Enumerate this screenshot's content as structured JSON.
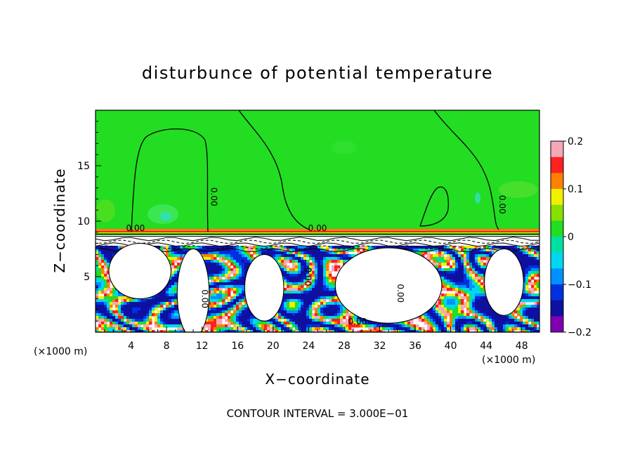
{
  "chart_data": {
    "type": "heatmap",
    "title": "disturbunce of potential temperature",
    "xlabel": "X−coordinate",
    "ylabel": "Z−coordinate",
    "xlim": [
      0,
      50
    ],
    "ylim": [
      0,
      20
    ],
    "x_ticks": [
      4,
      8,
      12,
      16,
      20,
      24,
      28,
      32,
      36,
      40,
      44,
      48
    ],
    "y_ticks": [
      5,
      10,
      15
    ],
    "x_unit_left": "(×1000 m)",
    "x_unit_right": "(×1000 m)",
    "footer": "CONTOUR INTERVAL = 3.000E−01",
    "contour_label": "0.00",
    "colorbar": {
      "vmin": -0.2,
      "vmax": 0.2,
      "ticks": [
        "0.2",
        "0.1",
        "0",
        "−0.1",
        "−0.2"
      ],
      "tick_values": [
        0.2,
        0.1,
        0,
        -0.1,
        -0.2
      ],
      "colors": [
        "#f5a8b8",
        "#ff2020",
        "#ff8000",
        "#f0f000",
        "#88e000",
        "#22dd22",
        "#00e0a0",
        "#00d8f0",
        "#0090ff",
        "#0030e0",
        "#1010a0",
        "#8000b0"
      ]
    },
    "grid": false,
    "inversion_height": 9.0
  },
  "colors": {
    "upper_field": "#22dd22",
    "inversion_band": "#ff3010",
    "unresolved": "#ffffff"
  }
}
